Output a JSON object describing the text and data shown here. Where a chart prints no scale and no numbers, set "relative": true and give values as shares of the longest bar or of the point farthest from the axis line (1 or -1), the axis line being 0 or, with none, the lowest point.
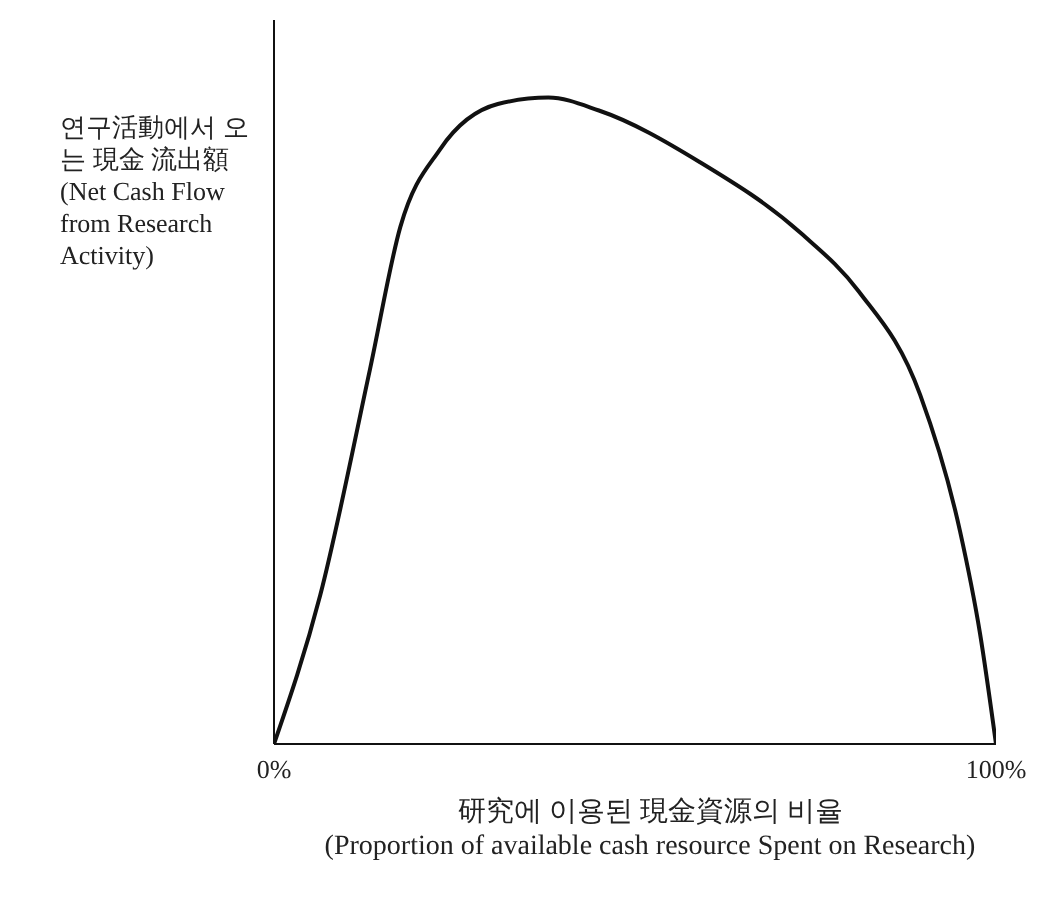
{
  "chart_data": {
    "type": "line",
    "relative": true,
    "ylabel": "연구活動에서 오는 現金 流出額 (Net Cash Flow from Research Activity)",
    "xlabel": "研究에 이용된 現金資源의 비율 (Proportion of available cash resource Spent on Research)",
    "x": [
      0,
      6.4,
      13.3,
      17.5,
      23,
      31,
      38,
      45,
      59,
      73,
      81,
      89.5,
      95,
      97.8,
      100
    ],
    "xlim": [
      0,
      100
    ],
    "xticks": [
      {
        "value": 0,
        "label": "0%"
      },
      {
        "value": 100,
        "label": "100%"
      }
    ],
    "series": [
      {
        "color": "#111111",
        "values": [
          0,
          0.23,
          0.58,
          0.8,
          0.92,
          0.99,
          1,
          0.98,
          0.9,
          0.79,
          0.7,
          0.54,
          0.33,
          0.17,
          0
        ]
      }
    ],
    "marker": "none",
    "line_style": "solid",
    "grid": false
  }
}
